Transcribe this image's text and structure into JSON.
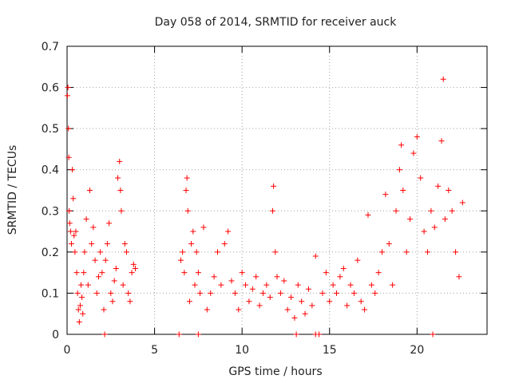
{
  "chart_data": {
    "type": "scatter",
    "title": "Day 058 of 2014, SRMTID for receiver auck",
    "xlabel": "GPS time / hours",
    "ylabel": "SRMTID / TECUs",
    "xlim": [
      0,
      24
    ],
    "ylim": [
      0,
      0.7
    ],
    "xticks": [
      0,
      5,
      10,
      15,
      20
    ],
    "xtick_labels": [
      "0",
      "5",
      "10",
      "15",
      "20"
    ],
    "yticks": [
      0,
      0.1,
      0.2,
      0.3,
      0.4,
      0.5,
      0.6,
      0.7
    ],
    "ytick_labels": [
      "0",
      "0.1",
      "0.2",
      "0.3",
      "0.4",
      "0.5",
      "0.6",
      "0.7"
    ],
    "grid": true,
    "marker": "+",
    "marker_color": "#ff0000",
    "series": [
      {
        "name": "SRMTID",
        "x": [
          0.02,
          0.05,
          0.08,
          0.1,
          0.12,
          0.15,
          0.2,
          0.25,
          0.3,
          0.35,
          0.4,
          0.45,
          0.5,
          0.55,
          0.6,
          0.65,
          0.7,
          0.75,
          0.8,
          0.85,
          0.9,
          0.95,
          1.0,
          1.1,
          1.2,
          1.3,
          1.4,
          1.5,
          1.6,
          1.7,
          1.8,
          1.9,
          2.0,
          2.1,
          2.2,
          2.3,
          2.4,
          2.5,
          2.6,
          2.7,
          2.8,
          2.9,
          3.0,
          3.05,
          3.1,
          3.2,
          3.3,
          3.4,
          3.5,
          3.6,
          3.7,
          3.8,
          3.9,
          6.5,
          6.6,
          6.7,
          6.8,
          6.85,
          6.9,
          7.0,
          7.1,
          7.2,
          7.3,
          7.4,
          7.5,
          7.6,
          7.8,
          8.0,
          8.2,
          8.4,
          8.6,
          8.8,
          9.0,
          9.2,
          9.4,
          9.6,
          9.8,
          10.0,
          10.2,
          10.4,
          10.6,
          10.8,
          11.0,
          11.2,
          11.4,
          11.6,
          11.75,
          11.8,
          11.9,
          12.0,
          12.2,
          12.4,
          12.6,
          12.8,
          13.0,
          13.2,
          13.4,
          13.6,
          13.8,
          14.0,
          14.2,
          14.6,
          14.8,
          15.0,
          15.2,
          15.4,
          15.6,
          15.8,
          16.0,
          16.2,
          16.4,
          16.6,
          16.8,
          17.0,
          17.2,
          17.4,
          17.6,
          17.8,
          18.0,
          18.2,
          18.4,
          18.6,
          18.8,
          19.0,
          19.1,
          19.2,
          19.4,
          19.6,
          19.8,
          20.0,
          20.2,
          20.4,
          20.6,
          20.8,
          21.0,
          21.2,
          21.4,
          21.5,
          21.6,
          21.8,
          22.0,
          22.2,
          22.4,
          22.6,
          2.15,
          6.4,
          7.5,
          13.1,
          14.2,
          14.4,
          20.9
        ],
        "y": [
          0.58,
          0.6,
          0.5,
          0.43,
          0.3,
          0.27,
          0.25,
          0.22,
          0.4,
          0.33,
          0.24,
          0.2,
          0.25,
          0.15,
          0.1,
          0.06,
          0.03,
          0.07,
          0.12,
          0.09,
          0.05,
          0.15,
          0.2,
          0.28,
          0.12,
          0.35,
          0.22,
          0.26,
          0.18,
          0.1,
          0.14,
          0.2,
          0.15,
          0.06,
          0.18,
          0.22,
          0.27,
          0.1,
          0.08,
          0.13,
          0.16,
          0.38,
          0.42,
          0.35,
          0.3,
          0.12,
          0.22,
          0.2,
          0.1,
          0.08,
          0.15,
          0.17,
          0.16,
          0.18,
          0.2,
          0.15,
          0.35,
          0.38,
          0.3,
          0.08,
          0.22,
          0.25,
          0.12,
          0.2,
          0.15,
          0.1,
          0.26,
          0.06,
          0.1,
          0.14,
          0.2,
          0.12,
          0.22,
          0.25,
          0.13,
          0.1,
          0.06,
          0.15,
          0.12,
          0.08,
          0.11,
          0.14,
          0.07,
          0.1,
          0.12,
          0.09,
          0.3,
          0.36,
          0.2,
          0.14,
          0.1,
          0.13,
          0.06,
          0.09,
          0.04,
          0.12,
          0.08,
          0.05,
          0.11,
          0.07,
          0.19,
          0.1,
          0.15,
          0.08,
          0.12,
          0.1,
          0.14,
          0.16,
          0.07,
          0.12,
          0.1,
          0.18,
          0.08,
          0.06,
          0.29,
          0.12,
          0.1,
          0.15,
          0.2,
          0.34,
          0.22,
          0.12,
          0.3,
          0.4,
          0.46,
          0.35,
          0.2,
          0.28,
          0.44,
          0.48,
          0.38,
          0.25,
          0.2,
          0.3,
          0.26,
          0.36,
          0.47,
          0.62,
          0.28,
          0.35,
          0.3,
          0.2,
          0.14,
          0.32,
          0,
          0,
          0,
          0,
          0,
          0,
          0
        ]
      }
    ]
  }
}
